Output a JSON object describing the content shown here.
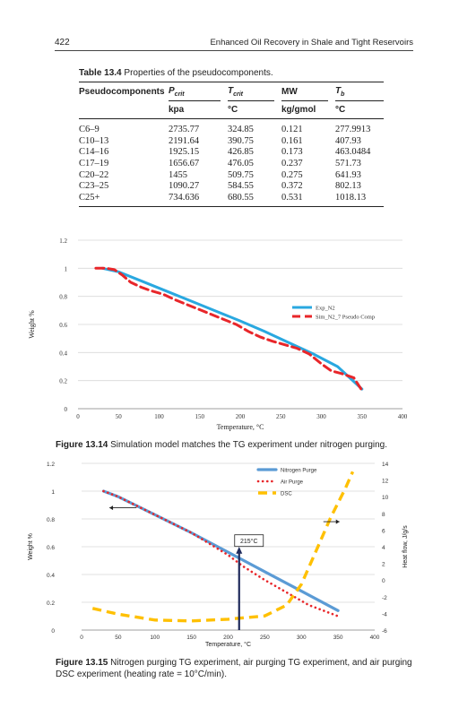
{
  "header": {
    "page_number": "422",
    "running_title": "Enhanced Oil Recovery in Shale and Tight Reservoirs"
  },
  "table": {
    "label": "Table 13.4",
    "title": "Properties of the pseudocomponents.",
    "columns": [
      {
        "name": "Pseudocomponents",
        "base": "",
        "sub": "",
        "unit": ""
      },
      {
        "name": "",
        "base": "P",
        "sub": "crit",
        "unit": "kpa"
      },
      {
        "name": "",
        "base": "T",
        "sub": "crit",
        "unit": "°C"
      },
      {
        "name": "MW",
        "base": "",
        "sub": "",
        "unit": "kg/gmol"
      },
      {
        "name": "",
        "base": "T",
        "sub": "b",
        "unit": "°C"
      }
    ],
    "rows": [
      [
        "C6–9",
        "2735.77",
        "324.85",
        "0.121",
        "277.9913"
      ],
      [
        "C10–13",
        "2191.64",
        "390.75",
        "0.161",
        "407.93"
      ],
      [
        "C14–16",
        "1925.15",
        "426.85",
        "0.173",
        "463.0484"
      ],
      [
        "C17–19",
        "1656.67",
        "476.05",
        "0.237",
        "571.73"
      ],
      [
        "C20–22",
        "1455",
        "509.75",
        "0.275",
        "641.93"
      ],
      [
        "C23–25",
        "1090.27",
        "584.55",
        "0.372",
        "802.13"
      ],
      [
        "C25+",
        "734.636",
        "680.55",
        "0.531",
        "1018.13"
      ]
    ]
  },
  "figure1": {
    "label": "Figure 13.14",
    "caption": "Simulation model matches the TG experiment under nitrogen purging."
  },
  "figure2": {
    "label": "Figure 13.15",
    "caption": "Nitrogen purging TG experiment, air purging TG experiment, and air purging DSC experiment (heating rate = 10°C/min)."
  },
  "chart_data": [
    {
      "type": "line",
      "xlabel": "Temperature, °C",
      "ylabel": "Weight %",
      "xlim": [
        0,
        400
      ],
      "ylim": [
        0,
        1.2
      ],
      "xticks": [
        "0",
        "50",
        "100",
        "150",
        "200",
        "250",
        "300",
        "350",
        "400"
      ],
      "yticks": [
        "0",
        "0.2",
        "0.4",
        "0.6",
        "0.8",
        "1",
        "1.2"
      ],
      "grid": true,
      "legend": "right",
      "series": [
        {
          "name": "Exp_N2",
          "color": "#29a8e0",
          "x": [
            30,
            50,
            80,
            110,
            140,
            170,
            200,
            230,
            260,
            290,
            320,
            350
          ],
          "y": [
            1.0,
            0.975,
            0.905,
            0.835,
            0.765,
            0.695,
            0.625,
            0.55,
            0.47,
            0.39,
            0.3,
            0.14
          ]
        },
        {
          "name": "Sim_N2_7 Pseudo Comp",
          "color": "#e8262a",
          "x": [
            22,
            35,
            45,
            55,
            65,
            78,
            90,
            105,
            120,
            135,
            150,
            165,
            180,
            195,
            210,
            225,
            240,
            255,
            270,
            285,
            300,
            312,
            325,
            340,
            350
          ],
          "y": [
            1.0,
            1.0,
            0.99,
            0.95,
            0.9,
            0.865,
            0.84,
            0.815,
            0.775,
            0.74,
            0.705,
            0.67,
            0.635,
            0.6,
            0.55,
            0.51,
            0.48,
            0.455,
            0.43,
            0.39,
            0.32,
            0.27,
            0.25,
            0.22,
            0.13
          ]
        }
      ]
    },
    {
      "type": "line",
      "xlabel": "Temperature, °C",
      "ylabel": "Weight %",
      "y2label": "Heat flow, J/g/s",
      "xlim": [
        0,
        400
      ],
      "ylim": [
        0,
        1.2
      ],
      "y2lim": [
        -6,
        14
      ],
      "xticks": [
        "0",
        "50",
        "100",
        "150",
        "200",
        "250",
        "300",
        "350",
        "400"
      ],
      "yticks": [
        "0",
        "0.2",
        "0.4",
        "0.6",
        "0.8",
        "1",
        "1.2"
      ],
      "y2ticks": [
        "-6",
        "-4",
        "-2",
        "0",
        "2",
        "4",
        "6",
        "8",
        "10",
        "12",
        "14"
      ],
      "grid": true,
      "legend": "top-right",
      "annotation": {
        "text": "215°C",
        "x": 215
      },
      "series": [
        {
          "name": "Nitrogen Purge",
          "axis": "left",
          "color": "#5b9bd5",
          "x": [
            30,
            50,
            100,
            150,
            200,
            250,
            300,
            350
          ],
          "y": [
            1.0,
            0.96,
            0.83,
            0.7,
            0.56,
            0.42,
            0.28,
            0.14
          ]
        },
        {
          "name": "Air Purge",
          "axis": "left",
          "color": "#e8262a",
          "x": [
            30,
            50,
            100,
            150,
            200,
            220,
            250,
            280,
            310,
            350
          ],
          "y": [
            1.0,
            0.96,
            0.83,
            0.7,
            0.54,
            0.46,
            0.36,
            0.27,
            0.18,
            0.1
          ]
        },
        {
          "name": "DSC",
          "axis": "right",
          "color": "#ffc000",
          "x": [
            15,
            50,
            100,
            150,
            200,
            250,
            280,
            300,
            320,
            340,
            360,
            370
          ],
          "y": [
            -3.4,
            -4.1,
            -4.8,
            -4.9,
            -4.7,
            -4.3,
            -3.0,
            -0.5,
            3.5,
            7.5,
            11.0,
            13.0
          ]
        }
      ]
    }
  ]
}
